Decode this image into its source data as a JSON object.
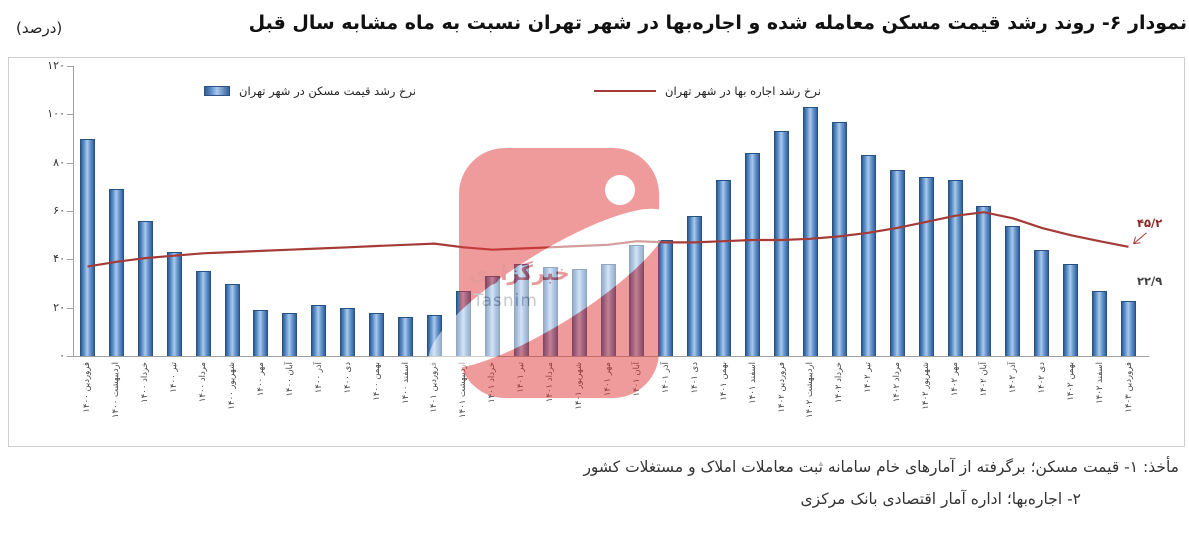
{
  "page": {
    "title": "نمودار ۶- روند رشد قیمت مسکن معامله شده و اجاره‌بها در شهر تهران نسبت به ماه مشابه سال قبل",
    "unit_label": "(درصد)"
  },
  "legend": {
    "bars_label": "نرخ رشد قیمت مسکن در شهر تهران",
    "line_label": "نرخ رشد اجاره بها در شهر تهران"
  },
  "annotations": {
    "line_end_value": "۴۵/۲",
    "bar_end_value": "۲۲/۹"
  },
  "watermark": {
    "agency": "خبرگزاری",
    "latin": "Tasnim"
  },
  "footer": {
    "line1": "مأخذ: ۱- قیمت مسکن؛ برگرفته از آمارهای خام سامانه ثبت معاملات املاک و مستغلات کشور",
    "line2": "۲- اجاره‌بها؛ اداره آمار اقتصادی بانک مرکزی"
  },
  "colors": {
    "bar": "#4f81bd",
    "line": "#a53b36",
    "watermark_red": "#e23a3a"
  },
  "chart_data": {
    "type": "bar+line",
    "title": "روند رشد قیمت مسکن معامله شده و اجاره‌بها در شهر تهران نسبت به ماه مشابه سال قبل",
    "ylabel": "درصد",
    "ylim": [
      0,
      120
    ],
    "ytick_step": 20,
    "ytick_labels": [
      "۰",
      "۲۰",
      "۴۰",
      "۶۰",
      "۸۰",
      "۱۰۰",
      "۱۲۰"
    ],
    "grid": false,
    "legend_position": "top",
    "categories": [
      "فروردین ۱۴۰۰",
      "اردیبهشت ۱۴۰۰",
      "خرداد ۱۴۰۰",
      "تیر ۱۴۰۰",
      "مرداد ۱۴۰۰",
      "شهریور ۱۴۰۰",
      "مهر ۱۴۰۰",
      "آبان ۱۴۰۰",
      "آذر ۱۴۰۰",
      "دی ۱۴۰۰",
      "بهمن ۱۴۰۰",
      "اسفند ۱۴۰۰",
      "فروردین ۱۴۰۱",
      "اردیبهشت ۱۴۰۱",
      "خرداد ۱۴۰۱",
      "تیر ۱۴۰۱",
      "مرداد ۱۴۰۱",
      "شهریور ۱۴۰۱",
      "مهر ۱۴۰۱",
      "آبان ۱۴۰۱",
      "آذر ۱۴۰۱",
      "دی ۱۴۰۱",
      "بهمن ۱۴۰۱",
      "اسفند ۱۴۰۱",
      "فروردین ۱۴۰۲",
      "اردیبهشت ۱۴۰۲",
      "خرداد ۱۴۰۲",
      "تیر ۱۴۰۲",
      "مرداد ۱۴۰۲",
      "شهریور ۱۴۰۲",
      "مهر ۱۴۰۲",
      "آبان ۱۴۰۲",
      "آذر ۱۴۰۲",
      "دی ۱۴۰۲",
      "بهمن ۱۴۰۲",
      "اسفند ۱۴۰۲",
      "فروردین ۱۴۰۳"
    ],
    "series": [
      {
        "name": "نرخ رشد قیمت مسکن در شهر تهران",
        "type": "bar",
        "color": "#4f81bd",
        "values": [
          90,
          69,
          56,
          43,
          35,
          30,
          19,
          18,
          21,
          20,
          18,
          16,
          17,
          27,
          33,
          38,
          37,
          36,
          38,
          46,
          48,
          58,
          73,
          84,
          93,
          103,
          97,
          83,
          77,
          74,
          73,
          62,
          54,
          44,
          38,
          27,
          22.9
        ]
      },
      {
        "name": "نرخ رشد اجاره بها در شهر تهران",
        "type": "line",
        "color": "#a53b36",
        "values": [
          37,
          39,
          40.5,
          41.5,
          42.5,
          43,
          43.5,
          44,
          44.5,
          45,
          45.5,
          46,
          46.5,
          45,
          44,
          44.5,
          45,
          45.5,
          46,
          47.5,
          47,
          47,
          47.5,
          48,
          48,
          48.5,
          49.5,
          51,
          53,
          55.5,
          58,
          59.5,
          57,
          53,
          50,
          47.5,
          45.2
        ]
      }
    ]
  }
}
